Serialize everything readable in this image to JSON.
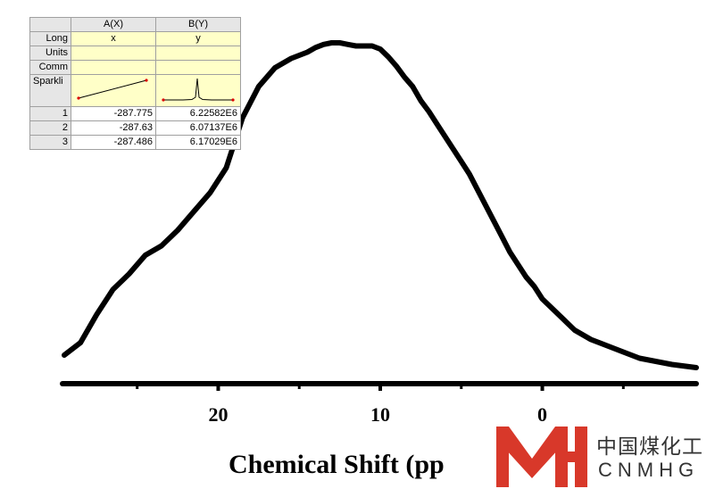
{
  "chart_data": {
    "type": "line",
    "xlabel": "Chemical Shift (pp",
    "ylabel": "",
    "x_reversed": true,
    "xlim": [
      29.5,
      -9.5
    ],
    "ylim": [
      0,
      1.08
    ],
    "xticks_major": [
      20,
      10,
      0
    ],
    "xticks_minor": [
      25,
      15,
      5,
      -5
    ],
    "tick_labels": [
      "20",
      "10",
      "0"
    ],
    "grid": false,
    "series": [
      {
        "color": "#000000",
        "x": [
          29.5,
          28.5,
          27.5,
          26.5,
          25.5,
          24.5,
          23.5,
          22.5,
          21.5,
          20.5,
          19.5,
          18.5,
          17.5,
          16.5,
          15.5,
          14.5,
          14.0,
          13.5,
          13.0,
          12.5,
          12.0,
          11.5,
          11.0,
          10.5,
          10.0,
          9.5,
          9.0,
          8.5,
          8.0,
          7.5,
          7.0,
          6.5,
          6.0,
          5.5,
          5.0,
          4.5,
          4.0,
          3.5,
          3.0,
          2.5,
          2.0,
          1.5,
          1.0,
          0.5,
          0.0,
          -1.0,
          -2.0,
          -3.0,
          -4.0,
          -5.0,
          -6.0,
          -7.0,
          -8.0,
          -9.5
        ],
        "y": [
          0.04,
          0.08,
          0.17,
          0.25,
          0.3,
          0.36,
          0.39,
          0.44,
          0.5,
          0.56,
          0.64,
          0.8,
          0.9,
          0.96,
          0.99,
          1.01,
          1.025,
          1.035,
          1.04,
          1.04,
          1.035,
          1.03,
          1.03,
          1.03,
          1.02,
          0.995,
          0.965,
          0.93,
          0.9,
          0.855,
          0.82,
          0.78,
          0.74,
          0.7,
          0.66,
          0.62,
          0.57,
          0.52,
          0.47,
          0.42,
          0.37,
          0.33,
          0.29,
          0.26,
          0.22,
          0.17,
          0.12,
          0.09,
          0.07,
          0.05,
          0.03,
          0.02,
          0.01,
          0.0
        ]
      }
    ]
  },
  "sheet": {
    "columns": [
      "A(X)",
      "B(Y)"
    ],
    "meta_rows": [
      {
        "label": "Long",
        "a": "x",
        "b": "y"
      },
      {
        "label": "Units",
        "a": "",
        "b": ""
      },
      {
        "label": "Comm",
        "a": "",
        "b": ""
      }
    ],
    "sparkline_label": "Sparkli",
    "rows": [
      {
        "index": "1",
        "a": "-287.775",
        "b": "6.22582E6"
      },
      {
        "index": "2",
        "a": "-287.63",
        "b": "6.07137E6"
      },
      {
        "index": "3",
        "a": "-287.486",
        "b": "6.17029E6"
      }
    ]
  },
  "logo": {
    "chinese": "中国煤化工",
    "english": "CNMHG",
    "brand_color": "#d8382a"
  }
}
